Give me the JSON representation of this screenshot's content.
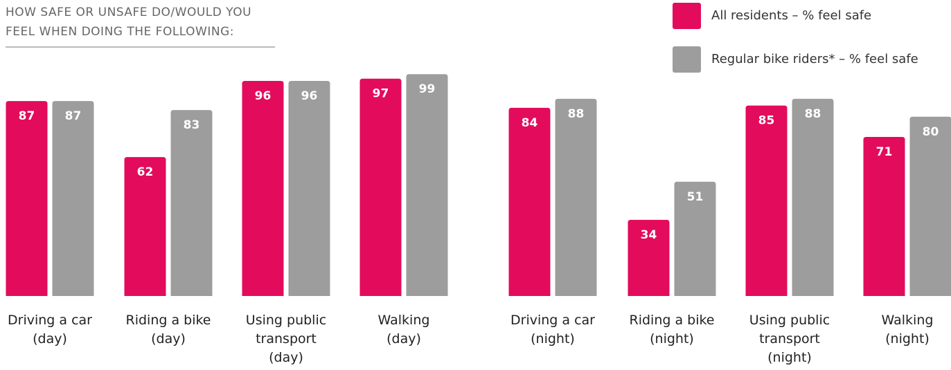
{
  "chart_data": {
    "type": "bar",
    "title": "HOW SAFE OR UNSAFE DO/WOULD YOU\nFEEL WHEN DOING THE FOLLOWING:",
    "categories": [
      "Driving a car\n(day)",
      "Riding a bike\n(day)",
      "Using public\ntransport\n(day)",
      "Walking\n(day)",
      "Driving a car\n(night)",
      "Riding a bike\n(night)",
      "Using public\ntransport\n(night)",
      "Walking\n(night)"
    ],
    "series": [
      {
        "name": "All residents  – % feel safe",
        "color": "#e30b5c",
        "values": [
          87,
          62,
          96,
          97,
          84,
          34,
          85,
          71
        ]
      },
      {
        "name": "Regular bike riders* – % feel safe",
        "color": "#9d9d9d",
        "values": [
          87,
          83,
          96,
          99,
          88,
          51,
          88,
          80
        ]
      }
    ]
  }
}
